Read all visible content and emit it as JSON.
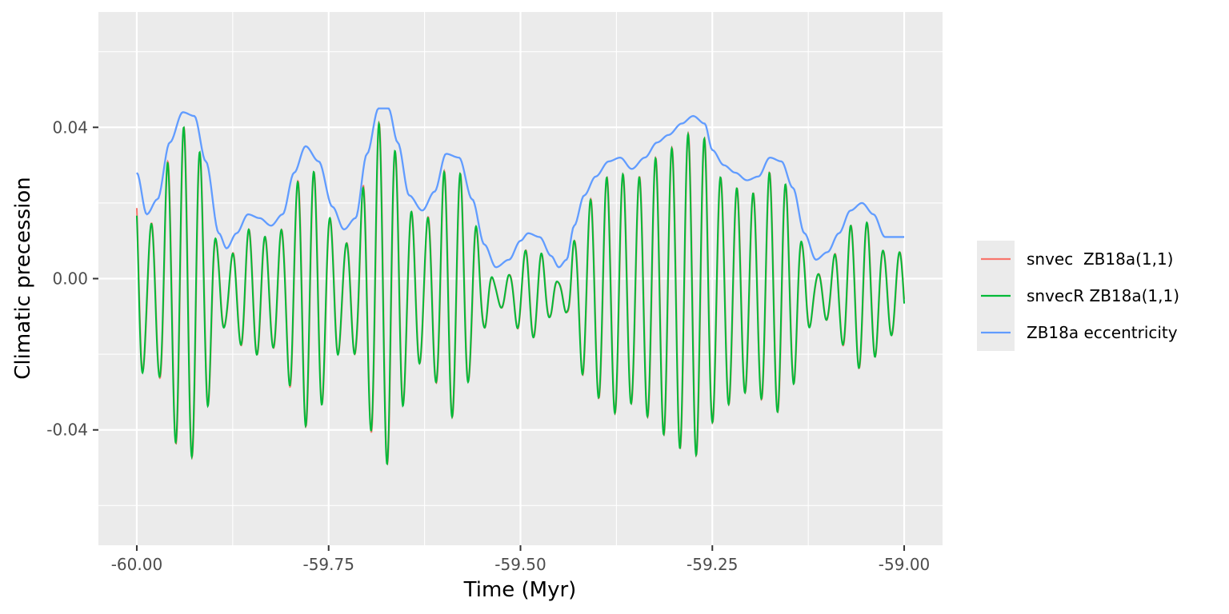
{
  "chart_data": {
    "type": "line",
    "title": "",
    "xlabel": "Time (Myr)",
    "ylabel": "Climatic precession",
    "xlim": [
      -60.05,
      -58.95
    ],
    "ylim": [
      -0.0705,
      0.0705
    ],
    "x_ticks": [
      -60.0,
      -59.75,
      -59.5,
      -59.25,
      -59.0
    ],
    "x_tick_labels": [
      "-60.00",
      "-59.75",
      "-59.50",
      "-59.25",
      "-59.00"
    ],
    "y_ticks": [
      -0.04,
      0.0,
      0.04
    ],
    "y_tick_labels": [
      "-0.04",
      "0.00",
      "0.04"
    ],
    "grid": true,
    "legend_position": "right",
    "background": "#ebebeb",
    "series": [
      {
        "name": "snvec  ZB18a(1,1)",
        "color": "#f8766d",
        "kind": "precession",
        "phase_offset": 0.0
      },
      {
        "name": "snvecR ZB18a(1,1)",
        "color": "#00ba38",
        "kind": "precession",
        "phase_offset": 0.12
      },
      {
        "name": "ZB18a eccentricity",
        "color": "#619cff",
        "kind": "envelope",
        "x": [
          -60.0,
          -59.987,
          -59.973,
          -59.957,
          -59.94,
          -59.925,
          -59.91,
          -59.893,
          -59.883,
          -59.87,
          -59.855,
          -59.84,
          -59.825,
          -59.81,
          -59.795,
          -59.78,
          -59.763,
          -59.745,
          -59.73,
          -59.715,
          -59.7,
          -59.685,
          -59.672,
          -59.66,
          -59.645,
          -59.628,
          -59.612,
          -59.597,
          -59.58,
          -59.563,
          -59.547,
          -59.532,
          -59.515,
          -59.5,
          -59.49,
          -59.475,
          -59.46,
          -59.45,
          -59.44,
          -59.43,
          -59.417,
          -59.402,
          -59.385,
          -59.37,
          -59.355,
          -59.338,
          -59.322,
          -59.307,
          -59.29,
          -59.275,
          -59.26,
          -59.25,
          -59.235,
          -59.22,
          -59.205,
          -59.19,
          -59.175,
          -59.16,
          -59.145,
          -59.13,
          -59.115,
          -59.1,
          -59.085,
          -59.07,
          -59.055,
          -59.04,
          -59.025,
          -59.01,
          -59.0
        ],
        "y": [
          0.028,
          0.017,
          0.021,
          0.036,
          0.044,
          0.043,
          0.031,
          0.012,
          0.008,
          0.012,
          0.017,
          0.016,
          0.014,
          0.017,
          0.028,
          0.035,
          0.031,
          0.019,
          0.013,
          0.016,
          0.033,
          0.045,
          0.045,
          0.036,
          0.022,
          0.018,
          0.023,
          0.033,
          0.032,
          0.021,
          0.009,
          0.003,
          0.005,
          0.01,
          0.012,
          0.011,
          0.006,
          0.003,
          0.005,
          0.014,
          0.022,
          0.027,
          0.031,
          0.032,
          0.029,
          0.032,
          0.036,
          0.038,
          0.041,
          0.043,
          0.041,
          0.034,
          0.03,
          0.028,
          0.026,
          0.027,
          0.032,
          0.031,
          0.024,
          0.012,
          0.005,
          0.007,
          0.012,
          0.018,
          0.02,
          0.017,
          0.011,
          0.011,
          0.011
        ]
      }
    ]
  }
}
